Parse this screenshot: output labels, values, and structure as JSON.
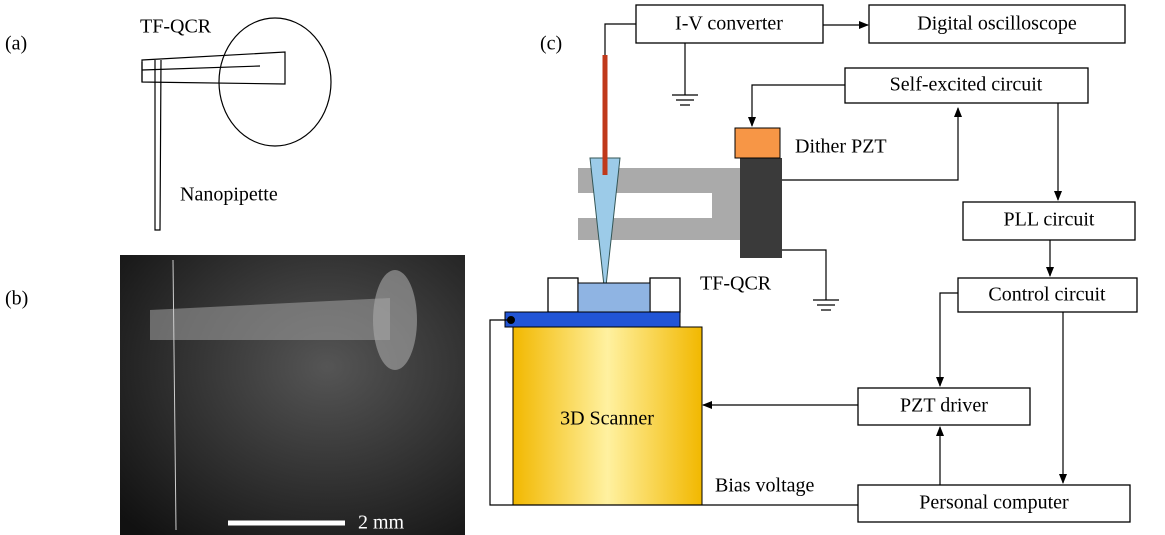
{
  "panels": {
    "a": {
      "label": "(a)",
      "tf_qcr": "TF-QCR",
      "nanopipette": "Nanopipette"
    },
    "b": {
      "label": "(b)",
      "scale": "2 mm"
    },
    "c": {
      "label": "(c)",
      "iv_converter": "I-V converter",
      "oscilloscope": "Digital oscilloscope",
      "self_excited": "Self-excited circuit",
      "dither_pzt": "Dither PZT",
      "pll": "PLL circuit",
      "tf_qcr": "TF-QCR",
      "control": "Control circuit",
      "pzt_driver": "PZT driver",
      "scanner": "3D Scanner",
      "bias": "Bias voltage",
      "computer": "Personal computer"
    }
  }
}
